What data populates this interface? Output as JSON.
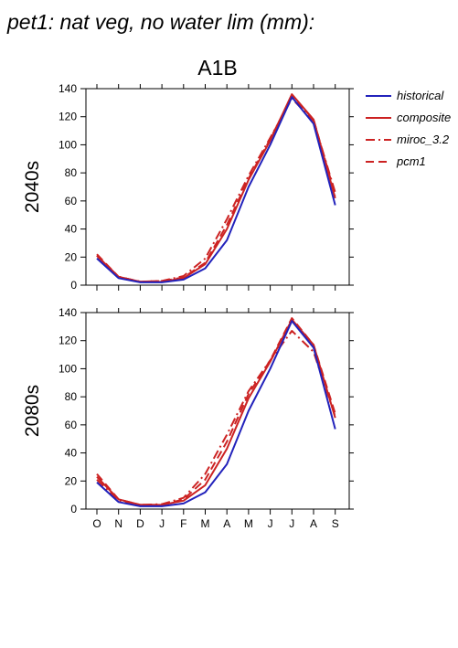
{
  "figure": {
    "title": "pet1: nat veg, no water lim (mm):",
    "scenario": "A1B"
  },
  "colors": {
    "historical": "#2222bb",
    "projection": "#cc2222"
  },
  "legend": {
    "placement": "right",
    "entries": [
      {
        "label": "historical",
        "dash": "solid",
        "color": "#2222bb"
      },
      {
        "label": "composite",
        "dash": "solid",
        "color": "#cc2222"
      },
      {
        "label": "miroc_3.2",
        "dash": "dashdot",
        "color": "#cc2222"
      },
      {
        "label": "pcm1",
        "dash": "dash",
        "color": "#cc2222"
      }
    ]
  },
  "chart_data": [
    {
      "type": "line",
      "panel_label": "2040s",
      "categories": [
        "O",
        "N",
        "D",
        "J",
        "F",
        "M",
        "A",
        "M",
        "J",
        "J",
        "A",
        "S"
      ],
      "ylim": [
        0,
        140
      ],
      "yticks": [
        0,
        20,
        40,
        60,
        80,
        100,
        120,
        140
      ],
      "grid": false,
      "series": [
        {
          "name": "historical",
          "dash": "solid",
          "color": "#2222bb",
          "values": [
            19,
            5,
            2,
            2,
            4,
            12,
            32,
            70,
            100,
            134,
            115,
            57
          ]
        },
        {
          "name": "composite",
          "dash": "solid",
          "color": "#cc2222",
          "values": [
            21,
            6,
            2.5,
            2.5,
            5,
            15,
            40,
            75,
            103,
            136,
            118,
            62
          ]
        },
        {
          "name": "miroc_3.2",
          "dash": "dashdot",
          "color": "#cc2222",
          "values": [
            21,
            6,
            2.5,
            3,
            6.5,
            19,
            47,
            78,
            105,
            133,
            117,
            66
          ]
        },
        {
          "name": "pcm1",
          "dash": "dash",
          "color": "#cc2222",
          "values": [
            22,
            6,
            2.5,
            3,
            5.5,
            16,
            43,
            76,
            104,
            135,
            118,
            64
          ]
        }
      ]
    },
    {
      "type": "line",
      "panel_label": "2080s",
      "categories": [
        "O",
        "N",
        "D",
        "J",
        "F",
        "M",
        "A",
        "M",
        "J",
        "J",
        "A",
        "S"
      ],
      "ylim": [
        0,
        140
      ],
      "yticks": [
        0,
        20,
        40,
        60,
        80,
        100,
        120,
        140
      ],
      "grid": false,
      "series": [
        {
          "name": "historical",
          "dash": "solid",
          "color": "#2222bb",
          "values": [
            19,
            5,
            2,
            2,
            4,
            12,
            32,
            70,
            100,
            134,
            115,
            57
          ]
        },
        {
          "name": "composite",
          "dash": "solid",
          "color": "#cc2222",
          "values": [
            23,
            7,
            3,
            3,
            6,
            17,
            43,
            79,
            105,
            135,
            117,
            65
          ]
        },
        {
          "name": "miroc_3.2",
          "dash": "dashdot",
          "color": "#cc2222",
          "values": [
            21,
            6,
            3,
            3.5,
            8,
            25,
            53,
            84,
            106,
            127,
            112,
            66
          ]
        },
        {
          "name": "pcm1",
          "dash": "dash",
          "color": "#cc2222",
          "values": [
            25,
            7,
            3,
            3,
            7,
            21,
            48,
            82,
            106,
            136,
            117,
            68
          ]
        }
      ]
    }
  ]
}
